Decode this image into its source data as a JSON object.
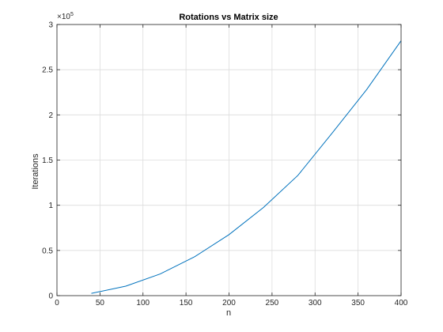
{
  "chart_data": {
    "type": "line",
    "title": "Rotations vs Matrix size",
    "xlabel": "n",
    "ylabel": "Iterations",
    "xlim": [
      0,
      400
    ],
    "ylim": [
      0,
      300000
    ],
    "x_ticks": [
      0,
      50,
      100,
      150,
      200,
      250,
      300,
      350,
      400
    ],
    "x_tick_labels": [
      "0",
      "50",
      "100",
      "150",
      "200",
      "250",
      "300",
      "350",
      "400"
    ],
    "y_ticks": [
      0,
      50000,
      100000,
      150000,
      200000,
      250000,
      300000
    ],
    "y_tick_labels": [
      "0",
      "0.5",
      "1",
      "1.5",
      "2",
      "2.5",
      "3"
    ],
    "y_exponent_base": "×10",
    "y_exponent_power": "5",
    "grid": true,
    "series": [
      {
        "color": "#0072bd",
        "x": [
          40,
          80,
          120,
          160,
          200,
          240,
          280,
          320,
          360,
          400
        ],
        "y": [
          2500,
          10500,
          24000,
          43000,
          67500,
          97500,
          133000,
          180000,
          228000,
          282000
        ]
      }
    ]
  }
}
